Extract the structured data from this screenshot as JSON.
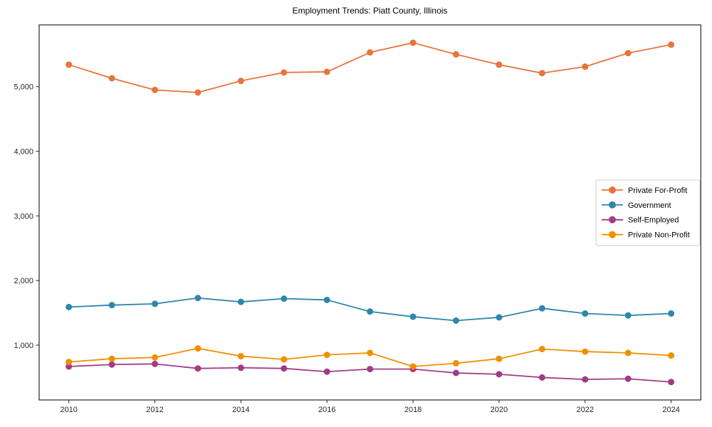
{
  "title": "Employment Trends: Piatt County, Illinois",
  "chart_data": {
    "type": "line",
    "title": "Employment Trends: Piatt County, Illinois",
    "xlabel": "",
    "ylabel": "",
    "grid": false,
    "legend_position": "center-right-inside",
    "x": [
      2010,
      2011,
      2012,
      2013,
      2014,
      2015,
      2016,
      2017,
      2018,
      2019,
      2020,
      2021,
      2022,
      2023,
      2024
    ],
    "x_ticks": [
      2010,
      2012,
      2014,
      2016,
      2018,
      2020,
      2022,
      2024
    ],
    "x_tick_labels": [
      "2010",
      "2012",
      "2014",
      "2016",
      "2018",
      "2020",
      "2022",
      "2024"
    ],
    "y_ticks": [
      1000,
      2000,
      3000,
      4000,
      5000
    ],
    "y_tick_labels": [
      "1,000",
      "2,000",
      "3,000",
      "4,000",
      "5,000"
    ],
    "xlim": [
      2009.31,
      2024.69
    ],
    "ylim": [
      152,
      5956
    ],
    "frame_color": "#262626",
    "legend_border_color": "#cccccc",
    "series": [
      {
        "name": "Private For-Profit",
        "color": "#E8743B",
        "values": [
          5340,
          5130,
          4950,
          4910,
          5090,
          5220,
          5230,
          5530,
          5680,
          5500,
          5340,
          5210,
          5310,
          5520,
          5650
        ]
      },
      {
        "name": "Government",
        "color": "#2E86AB",
        "values": [
          1590,
          1620,
          1640,
          1730,
          1670,
          1720,
          1700,
          1520,
          1440,
          1380,
          1430,
          1570,
          1490,
          1460,
          1490
        ]
      },
      {
        "name": "Self-Employed",
        "color": "#A23B84",
        "values": [
          670,
          700,
          710,
          640,
          650,
          640,
          590,
          630,
          630,
          570,
          550,
          500,
          470,
          480,
          430
        ]
      },
      {
        "name": "Private Non-Profit",
        "color": "#F18F01",
        "values": [
          740,
          790,
          810,
          950,
          830,
          780,
          850,
          880,
          670,
          720,
          790,
          940,
          900,
          880,
          840
        ]
      }
    ]
  }
}
